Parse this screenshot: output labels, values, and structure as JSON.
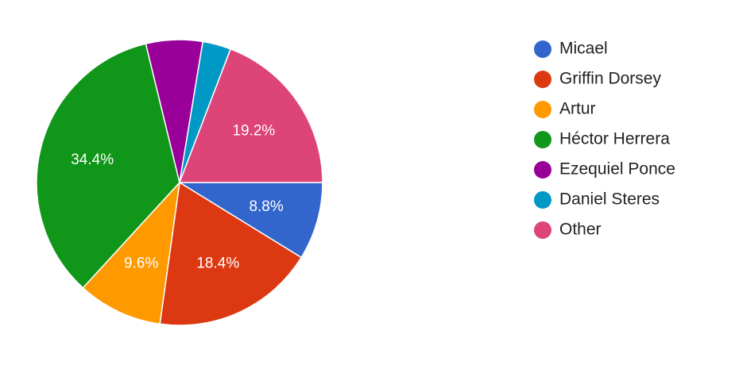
{
  "chart_data": {
    "type": "pie",
    "categories": [
      "Micael",
      "Griffin Dorsey",
      "Artur",
      "Héctor Herrera",
      "Ezequiel Ponce",
      "Daniel Steres",
      "Other"
    ],
    "values": [
      8.8,
      18.4,
      9.6,
      34.4,
      6.4,
      3.2,
      19.2
    ],
    "value_labels": [
      "8.8%",
      "18.4%",
      "9.6%",
      "34.4%",
      null,
      null,
      "19.2%"
    ],
    "colors": [
      "#3366cc",
      "#dc3912",
      "#ff9900",
      "#109618",
      "#990099",
      "#0099c6",
      "#dd4477"
    ],
    "legend": "right"
  }
}
